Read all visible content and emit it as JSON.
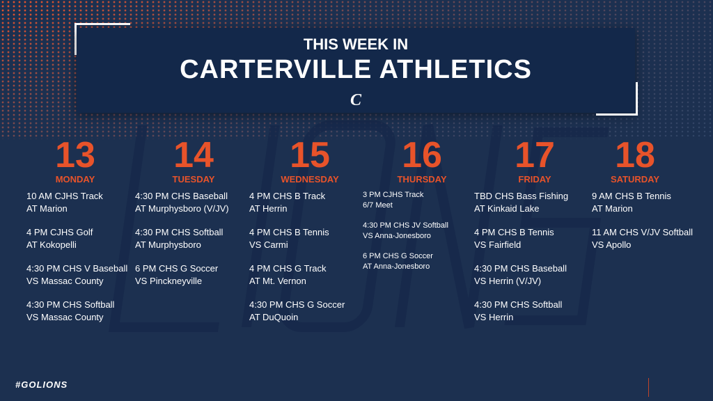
{
  "header": {
    "line1": "THIS WEEK IN",
    "line2": "CARTERVILLE ATHLETICS",
    "logo": "C"
  },
  "watermark": "LIONS",
  "colors": {
    "background": "#1c3050",
    "banner": "#13284a",
    "accent": "#e8532a"
  },
  "days": [
    {
      "num": "13",
      "name": "MONDAY",
      "events": [
        [
          "10 AM CJHS Track",
          "AT Marion"
        ],
        [
          "4 PM CJHS Golf",
          "AT Kokopelli"
        ],
        [
          "4:30 PM CHS V Baseball",
          "VS Massac County"
        ],
        [
          "4:30 PM CHS Softball",
          "VS Massac County"
        ]
      ]
    },
    {
      "num": "14",
      "name": "TUESDAY",
      "events": [
        [
          "4:30 PM CHS Baseball",
          "AT Murphysboro (V/JV)"
        ],
        [
          "4:30 PM CHS Softball",
          "AT Murphysboro"
        ],
        [
          "6 PM CHS G Soccer",
          "VS Pinckneyville"
        ]
      ]
    },
    {
      "num": "15",
      "name": "WEDNESDAY",
      "events": [
        [
          "4 PM CHS B Track",
          "AT Herrin"
        ],
        [
          "4 PM CHS B Tennis",
          "VS Carmi"
        ],
        [
          "4 PM CHS G Track",
          "AT Mt. Vernon"
        ],
        [
          "4:30 PM CHS G Soccer",
          "AT DuQuoin"
        ]
      ]
    },
    {
      "num": "16",
      "name": "THURSDAY",
      "events": [
        [
          "3 PM CJHS Track",
          "6/7 Meet"
        ],
        [
          "4:30 PM CHS JV Softball",
          "VS Anna-Jonesboro"
        ],
        [
          "6 PM CHS G Soccer",
          "AT Anna-Jonesboro"
        ]
      ]
    },
    {
      "num": "17",
      "name": "FRIDAY",
      "events": [
        [
          "TBD CHS Bass Fishing",
          "AT Kinkaid Lake"
        ],
        [
          "4 PM CHS B Tennis",
          "VS Fairfield"
        ],
        [
          "4:30 PM CHS Baseball",
          "VS Herrin (V/JV)"
        ],
        [
          "4:30 PM CHS Softball",
          "VS Herrin"
        ]
      ]
    },
    {
      "num": "18",
      "name": "SATURDAY",
      "events": [
        [
          "9 AM CHS B Tennis",
          "AT Marion"
        ],
        [
          "11 AM CHS V/JV Softball",
          "VS Apollo"
        ]
      ]
    }
  ],
  "footer": {
    "hashtag": "#GOLIONS"
  }
}
